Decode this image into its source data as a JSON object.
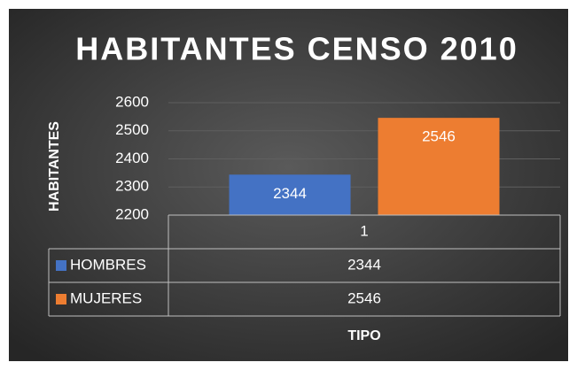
{
  "chart_data": {
    "type": "bar",
    "title": "HABITANTES CENSO 2010",
    "y_label": "HABITANTES",
    "x_label": "TIPO",
    "categories": [
      "1"
    ],
    "series": [
      {
        "name": "HOMBRES",
        "color": "#4472c4",
        "values": [
          2344
        ]
      },
      {
        "name": "MUJERES",
        "color": "#ed7d31",
        "values": [
          2546
        ]
      }
    ],
    "ylim": [
      2200,
      2600
    ],
    "yticks": [
      2200,
      2300,
      2400,
      2500,
      2600
    ],
    "grid": true
  }
}
